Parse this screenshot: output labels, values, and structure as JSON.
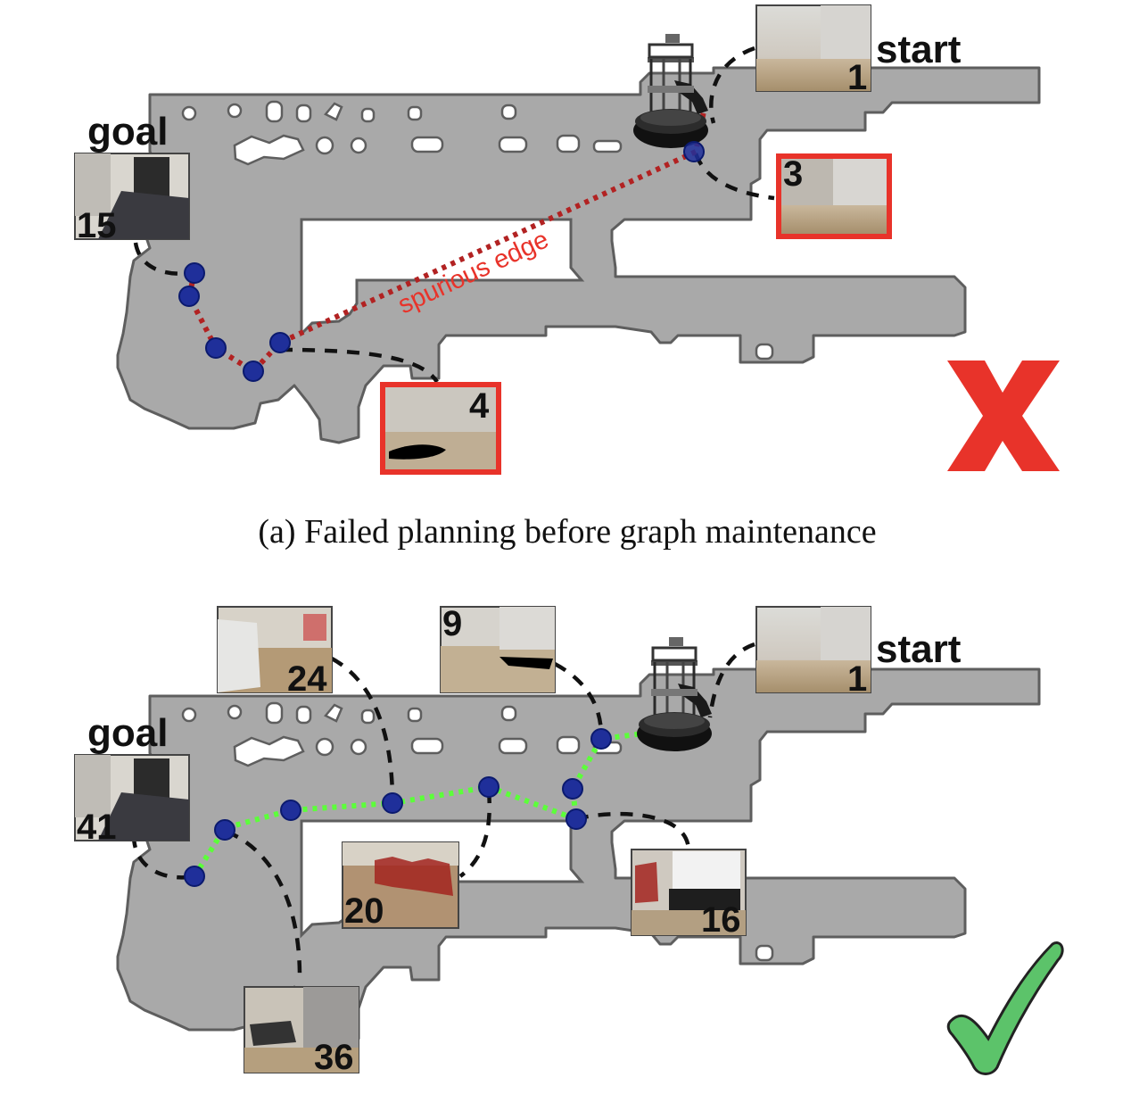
{
  "panel_a": {
    "caption": "(a) Failed planning before graph maintenance",
    "start_label": "start",
    "goal_label": "goal",
    "edge_annotation": "spurious edge",
    "frames": [
      {
        "id": "1",
        "role": "start"
      },
      {
        "id": "3",
        "role": "spurious"
      },
      {
        "id": "4",
        "role": "spurious"
      },
      {
        "id": "15",
        "role": "goal"
      }
    ],
    "result_icon": "red-x-icon",
    "colors": {
      "path": "#b22222",
      "highlight": "#e8332a",
      "fail": "#e8332a"
    }
  },
  "panel_b": {
    "start_label": "start",
    "goal_label": "goal",
    "frames": [
      {
        "id": "1",
        "role": "start"
      },
      {
        "id": "24"
      },
      {
        "id": "9"
      },
      {
        "id": "20"
      },
      {
        "id": "16"
      },
      {
        "id": "36"
      },
      {
        "id": "41",
        "role": "goal"
      }
    ],
    "result_icon": "green-check-icon",
    "colors": {
      "path": "#5cff3a",
      "success": "#5cc36a"
    }
  }
}
